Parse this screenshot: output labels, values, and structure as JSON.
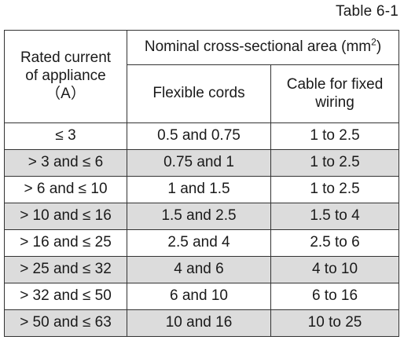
{
  "caption": "Table 6-1",
  "header": {
    "col1": [
      "Rated current",
      "of appliance",
      "（A）"
    ],
    "group": "Nominal cross-sectional area (mm",
    "group_sup": "2",
    "group_tail": ")",
    "col2": "Flexible cords",
    "col3": [
      "Cable for fixed",
      "wiring"
    ]
  },
  "rows": [
    {
      "current": "≤ 3",
      "flexible": "0.5 and 0.75",
      "fixed": "1 to 2.5"
    },
    {
      "current": "> 3 and ≤ 6",
      "flexible": "0.75 and 1",
      "fixed": "1 to 2.5"
    },
    {
      "current": "> 6 and ≤ 10",
      "flexible": "1 and 1.5",
      "fixed": "1 to 2.5"
    },
    {
      "current": "> 10 and ≤ 16",
      "flexible": "1.5 and 2.5",
      "fixed": "1.5 to 4"
    },
    {
      "current": "> 16 and ≤ 25",
      "flexible": "2.5 and 4",
      "fixed": "2.5 to 6"
    },
    {
      "current": "> 25 and ≤ 32",
      "flexible": "4 and 6",
      "fixed": "4 to 10"
    },
    {
      "current": "> 32 and ≤ 50",
      "flexible": "6 and 10",
      "fixed": "6 to 16"
    },
    {
      "current": "> 50 and ≤ 63",
      "flexible": "10 and 16",
      "fixed": "10 to 25"
    }
  ],
  "colors": {
    "shade": "#dcdcdc",
    "border": "#333333",
    "text": "#1a1a1a"
  }
}
